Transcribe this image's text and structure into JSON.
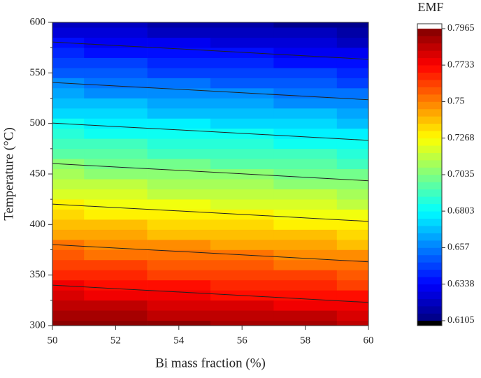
{
  "chart_data": {
    "type": "contour",
    "x_label": "Bi mass fraction (%)",
    "y_label": "Temperature (°C)",
    "colorbar_title": "EMF",
    "colormap": "jet",
    "x": [
      50,
      52,
      54,
      56,
      58,
      60
    ],
    "y": [
      300,
      310,
      320,
      330,
      340,
      350,
      360,
      370,
      380,
      390,
      400,
      410,
      420,
      430,
      440,
      450,
      460,
      470,
      480,
      490,
      500,
      510,
      520,
      530,
      540,
      550,
      560,
      570,
      580,
      590,
      600
    ],
    "z": [
      [
        0.7965,
        0.7945,
        0.7926,
        0.7906,
        0.7886,
        0.7866
      ],
      [
        0.7907,
        0.7887,
        0.7868,
        0.7848,
        0.7828,
        0.7808
      ],
      [
        0.7849,
        0.7829,
        0.781,
        0.779,
        0.777,
        0.775
      ],
      [
        0.7791,
        0.7771,
        0.7752,
        0.7732,
        0.7712,
        0.7692
      ],
      [
        0.7733,
        0.7713,
        0.7694,
        0.7674,
        0.7654,
        0.7634
      ],
      [
        0.7675,
        0.7655,
        0.7636,
        0.7616,
        0.7596,
        0.7576
      ],
      [
        0.7617,
        0.7597,
        0.7578,
        0.7558,
        0.7538,
        0.7518
      ],
      [
        0.7559,
        0.7539,
        0.752,
        0.75,
        0.748,
        0.746
      ],
      [
        0.7501,
        0.7481,
        0.7462,
        0.7442,
        0.7422,
        0.7402
      ],
      [
        0.7443,
        0.7423,
        0.7404,
        0.7384,
        0.7364,
        0.7344
      ],
      [
        0.7385,
        0.7365,
        0.7346,
        0.7326,
        0.7306,
        0.7286
      ],
      [
        0.7327,
        0.7307,
        0.7288,
        0.7268,
        0.7248,
        0.7228
      ],
      [
        0.7269,
        0.7249,
        0.723,
        0.721,
        0.719,
        0.717
      ],
      [
        0.7211,
        0.7191,
        0.7172,
        0.7152,
        0.7132,
        0.7112
      ],
      [
        0.7153,
        0.7133,
        0.7114,
        0.7094,
        0.7074,
        0.7054
      ],
      [
        0.7095,
        0.7075,
        0.7056,
        0.7036,
        0.7016,
        0.6996
      ],
      [
        0.7037,
        0.7017,
        0.6998,
        0.6978,
        0.6958,
        0.6938
      ],
      [
        0.6979,
        0.6959,
        0.694,
        0.692,
        0.69,
        0.688
      ],
      [
        0.6921,
        0.6901,
        0.6882,
        0.6862,
        0.6842,
        0.6822
      ],
      [
        0.6863,
        0.6843,
        0.6824,
        0.6804,
        0.6784,
        0.6764
      ],
      [
        0.6805,
        0.6785,
        0.6766,
        0.6746,
        0.6726,
        0.6706
      ],
      [
        0.6747,
        0.6727,
        0.6708,
        0.6688,
        0.6668,
        0.6648
      ],
      [
        0.6689,
        0.6669,
        0.665,
        0.663,
        0.661,
        0.659
      ],
      [
        0.6631,
        0.6611,
        0.6592,
        0.6572,
        0.6552,
        0.6532
      ],
      [
        0.6573,
        0.6553,
        0.6534,
        0.6514,
        0.6494,
        0.6474
      ],
      [
        0.6515,
        0.6495,
        0.6476,
        0.6456,
        0.6436,
        0.6416
      ],
      [
        0.6457,
        0.6437,
        0.6418,
        0.6398,
        0.6378,
        0.6358
      ],
      [
        0.6399,
        0.6379,
        0.636,
        0.634,
        0.632,
        0.63
      ],
      [
        0.6341,
        0.6321,
        0.6302,
        0.6282,
        0.6262,
        0.6242
      ],
      [
        0.6283,
        0.6263,
        0.6244,
        0.6224,
        0.6204,
        0.6184
      ],
      [
        0.6225,
        0.6205,
        0.6186,
        0.6166,
        0.6146,
        0.6126
      ]
    ],
    "xlim": [
      50,
      60
    ],
    "xticks": [
      50,
      52,
      54,
      56,
      58,
      60
    ],
    "ylim": [
      300,
      600
    ],
    "yticks": [
      300,
      350,
      400,
      450,
      500,
      550,
      600
    ],
    "zlim": [
      0.6105,
      0.7965
    ],
    "zticks": [
      0.6105,
      0.6338,
      0.657,
      0.6803,
      0.7035,
      0.7268,
      0.75,
      0.7733,
      0.7965
    ]
  }
}
